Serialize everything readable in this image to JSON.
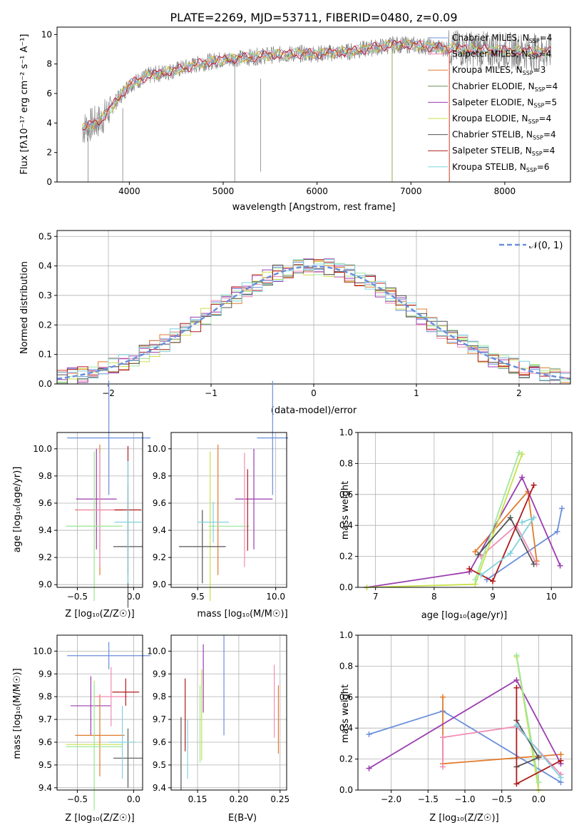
{
  "colors": [
    "#6a8fdb",
    "#e07b2d",
    "#f08cb4",
    "#9b3cb0",
    "#c8e04a",
    "#a0e8a0",
    "#555555",
    "#b01a1a",
    "#7fd3e0"
  ],
  "chart_data": [
    {
      "id": "spectrum",
      "type": "line",
      "title": "PLATE=2269, MJD=53711, FIBERID=0480, z=0.09",
      "xlabel": "wavelength [Angstrom, rest frame]",
      "ylabel": "Flux [fλ10⁻¹⁷ erg cm⁻² s⁻¹ A⁻¹]",
      "xlim": [
        3230,
        8700
      ],
      "ylim": [
        0,
        10.5
      ],
      "xticks": [
        4000,
        5000,
        6000,
        7000,
        8000
      ],
      "yticks": [
        0,
        2,
        4,
        6,
        8,
        10
      ],
      "continuum": [
        [
          3500,
          3.6
        ],
        [
          3700,
          4.2
        ],
        [
          3900,
          5.8
        ],
        [
          4000,
          6.6
        ],
        [
          4200,
          7.2
        ],
        [
          4500,
          7.6
        ],
        [
          4800,
          8.1
        ],
        [
          5000,
          8.3
        ],
        [
          5200,
          8.4
        ],
        [
          5500,
          8.6
        ],
        [
          5800,
          8.7
        ],
        [
          6000,
          8.7
        ],
        [
          6300,
          8.8
        ],
        [
          6600,
          9.1
        ],
        [
          6800,
          9.3
        ],
        [
          7000,
          9.3
        ],
        [
          7300,
          9.1
        ],
        [
          7600,
          9.0
        ],
        [
          8000,
          8.9
        ],
        [
          8500,
          8.8
        ]
      ],
      "legend": [
        {
          "label": "Chabrier MILES, N",
          "sub": "SSP",
          "tail": "=4",
          "color": "#6a8fdb"
        },
        {
          "label": "Salpeter MILES, N",
          "sub": "SSP",
          "tail": "=4",
          "color": "#f08cb4"
        },
        {
          "label": "Kroupa MILES, N",
          "sub": "SSP",
          "tail": "=3",
          "color": "#e07b2d"
        },
        {
          "label": "Chabrier ELODIE, N",
          "sub": "SSP",
          "tail": "=4",
          "color": "#6b8e5a"
        },
        {
          "label": "Salpeter ELODIE, N",
          "sub": "SSP",
          "tail": "=5",
          "color": "#9b3cb0"
        },
        {
          "label": "Kroupa ELODIE, N",
          "sub": "SSP",
          "tail": "=4",
          "color": "#c8e04a"
        },
        {
          "label": "Chabrier STELIB, N",
          "sub": "SSP",
          "tail": "=4",
          "color": "#555555"
        },
        {
          "label": "Salpeter STELIB, N",
          "sub": "SSP",
          "tail": "=4",
          "color": "#b01a1a"
        },
        {
          "label": "Kroupa STELIB, N",
          "sub": "SSP",
          "tail": "=6",
          "color": "#7fd3e0"
        }
      ]
    },
    {
      "id": "residuals",
      "type": "line",
      "xlabel": "(data-model)/error",
      "ylabel": "Normed distribution",
      "xlim": [
        -2.5,
        2.5
      ],
      "ylim": [
        0,
        0.52
      ],
      "xticks": [
        -2,
        -1,
        0,
        1,
        2
      ],
      "yticks": [
        0.0,
        0.1,
        0.2,
        0.3,
        0.4,
        0.5
      ],
      "legend": "𝒩(0, 1)",
      "grid": true
    },
    {
      "id": "age_Z",
      "type": "scatter",
      "xlabel": "Z [log₁₀(Z/Z☉)]",
      "ylabel": "age  [log₁₀(age/yr)]",
      "xlim": [
        -0.68,
        0.08
      ],
      "ylim": [
        8.98,
        10.12
      ],
      "xticks": [
        -0.5,
        0.0
      ],
      "yticks": [
        9.0,
        9.2,
        9.4,
        9.6,
        9.8,
        10.0
      ],
      "points": [
        {
          "x": -0.22,
          "xerr": 0.37,
          "y": 10.08,
          "yerr": 0.42,
          "c": 0
        },
        {
          "x": -0.33,
          "xerr": 0.18,
          "y": 9.63,
          "yerr": 0.37,
          "c": 3
        },
        {
          "x": -0.3,
          "xerr": 0.22,
          "y": 9.55,
          "yerr": 0.48,
          "c": 1
        },
        {
          "x": -0.3,
          "xerr": 0.2,
          "y": 9.55,
          "yerr": 0.42,
          "c": 2
        },
        {
          "x": -0.35,
          "xerr": 0.25,
          "y": 9.43,
          "yerr": 0.55,
          "c": 4
        },
        {
          "x": -0.35,
          "xerr": 0.25,
          "y": 9.43,
          "yerr": 0.55,
          "c": 5
        },
        {
          "x": -0.05,
          "xerr": 0.13,
          "y": 9.28,
          "yerr": 0.45,
          "c": 6
        },
        {
          "x": -0.05,
          "xerr": 0.12,
          "y": 9.55,
          "yerr": 0.47,
          "c": 7
        },
        {
          "x": -0.05,
          "xerr": 0.12,
          "y": 9.46,
          "yerr": 0.45,
          "c": 8
        }
      ]
    },
    {
      "id": "age_mass",
      "type": "scatter",
      "xlabel": "mass [log₁₀(M/M☉)]",
      "xlim": [
        9.33,
        10.07
      ],
      "ylim": [
        8.98,
        10.12
      ],
      "xticks": [
        9.5,
        10.0
      ],
      "yticks": [
        9.0,
        9.2,
        9.4,
        9.6,
        9.8,
        10.0
      ],
      "points": [
        {
          "x": 9.98,
          "xerr": 0.1,
          "y": 10.08,
          "yerr": 0.42,
          "c": 0
        },
        {
          "x": 9.86,
          "xerr": 0.12,
          "y": 9.63,
          "yerr": 0.37,
          "c": 3
        },
        {
          "x": 9.63,
          "xerr": 0.0,
          "y": 9.55,
          "yerr": 0.48,
          "c": 1
        },
        {
          "x": 9.8,
          "xerr": 0.0,
          "y": 9.55,
          "yerr": 0.42,
          "c": 2
        },
        {
          "x": 9.58,
          "xerr": 0.0,
          "y": 9.43,
          "yerr": 0.55,
          "c": 4
        },
        {
          "x": 9.7,
          "xerr": 0.13,
          "y": 9.43,
          "yerr": 0.0,
          "c": 5
        },
        {
          "x": 9.53,
          "xerr": 0.15,
          "y": 9.28,
          "yerr": 0.27,
          "c": 6
        },
        {
          "x": 9.82,
          "xerr": 0.0,
          "y": 9.55,
          "yerr": 0.3,
          "c": 7
        },
        {
          "x": 9.6,
          "xerr": 0.1,
          "y": 9.46,
          "yerr": 0.15,
          "c": 8
        }
      ]
    },
    {
      "id": "weight_age",
      "type": "line",
      "xlabel": "age  [log₁₀(age/yr)]",
      "ylabel": "mass weight",
      "xlim": [
        6.7,
        10.35
      ],
      "ylim": [
        0,
        1.0
      ],
      "xticks": [
        7,
        8,
        9,
        10
      ],
      "yticks": [
        0.0,
        0.2,
        0.4,
        0.6,
        0.8,
        1.0
      ],
      "series": [
        {
          "c": 0,
          "pts": [
            [
              8.9,
              0.05
            ],
            [
              10.1,
              0.36
            ],
            [
              10.18,
              0.51
            ]
          ]
        },
        {
          "c": 1,
          "pts": [
            [
              8.7,
              0.23
            ],
            [
              9.6,
              0.62
            ],
            [
              9.75,
              0.17
            ]
          ]
        },
        {
          "c": 2,
          "pts": [
            [
              8.8,
              0.2
            ],
            [
              9.4,
              0.4
            ],
            [
              9.75,
              0.15
            ]
          ]
        },
        {
          "c": 3,
          "pts": [
            [
              6.85,
              0.0
            ],
            [
              8.6,
              0.1
            ],
            [
              9.5,
              0.71
            ],
            [
              10.15,
              0.14
            ]
          ]
        },
        {
          "c": 4,
          "pts": [
            [
              6.85,
              0.0
            ],
            [
              8.7,
              0.02
            ],
            [
              9.5,
              0.86
            ]
          ]
        },
        {
          "c": 5,
          "pts": [
            [
              8.7,
              0.05
            ],
            [
              9.45,
              0.87
            ]
          ]
        },
        {
          "c": 6,
          "pts": [
            [
              8.75,
              0.21
            ],
            [
              9.3,
              0.45
            ],
            [
              9.7,
              0.15
            ]
          ]
        },
        {
          "c": 7,
          "pts": [
            [
              8.6,
              0.12
            ],
            [
              9.0,
              0.04
            ],
            [
              9.7,
              0.66
            ]
          ]
        },
        {
          "c": 8,
          "pts": [
            [
              8.8,
              0.08
            ],
            [
              9.3,
              0.22
            ],
            [
              9.7,
              0.45
            ],
            [
              9.5,
              0.42
            ]
          ]
        }
      ]
    },
    {
      "id": "mass_Z",
      "type": "scatter",
      "xlabel": "Z [log₁₀(Z/Z☉)]",
      "ylabel": "mass [log₁₀(M/M☉)]",
      "xlim": [
        -0.68,
        0.08
      ],
      "ylim": [
        9.39,
        10.07
      ],
      "xticks": [
        -0.5,
        0.0
      ],
      "yticks": [
        9.4,
        9.5,
        9.6,
        9.7,
        9.8,
        9.9,
        10.0
      ],
      "points": [
        {
          "x": -0.22,
          "xerr": 0.37,
          "y": 9.98,
          "yerr": 0.06,
          "c": 0
        },
        {
          "x": -0.38,
          "xerr": 0.18,
          "y": 9.76,
          "yerr": 0.13,
          "c": 3
        },
        {
          "x": -0.3,
          "xerr": 0.22,
          "y": 9.63,
          "yerr": 0.18,
          "c": 1
        },
        {
          "x": -0.2,
          "xerr": 0.15,
          "y": 9.8,
          "yerr": 0.13,
          "c": 2
        },
        {
          "x": -0.35,
          "xerr": 0.25,
          "y": 9.59,
          "yerr": 0.28,
          "c": 4
        },
        {
          "x": -0.35,
          "xerr": 0.25,
          "y": 9.58,
          "yerr": 0.28,
          "c": 5
        },
        {
          "x": -0.05,
          "xerr": 0.13,
          "y": 9.53,
          "yerr": 0.13,
          "c": 6
        },
        {
          "x": -0.07,
          "xerr": 0.12,
          "y": 9.82,
          "yerr": 0.06,
          "c": 7
        },
        {
          "x": -0.1,
          "xerr": 0.12,
          "y": 9.6,
          "yerr": 0.16,
          "c": 8
        }
      ]
    },
    {
      "id": "mass_EBV",
      "type": "scatter",
      "xlabel": "E(B-V)",
      "xlim": [
        0.118,
        0.258
      ],
      "ylim": [
        9.39,
        10.07
      ],
      "xticks": [
        0.15,
        0.2,
        0.25
      ],
      "yticks": [
        9.4,
        9.5,
        9.6,
        9.7,
        9.8,
        9.9,
        10.0
      ],
      "points": [
        {
          "x": 0.182,
          "xerr": 0,
          "y": 9.85,
          "yerr": 0.22,
          "c": 0
        },
        {
          "x": 0.248,
          "xerr": 0,
          "y": 9.7,
          "yerr": 0.15,
          "c": 1
        },
        {
          "x": 0.243,
          "xerr": 0,
          "y": 9.78,
          "yerr": 0.16,
          "c": 2
        },
        {
          "x": 0.157,
          "xerr": 0,
          "y": 9.88,
          "yerr": 0.15,
          "c": 3
        },
        {
          "x": 0.155,
          "xerr": 0,
          "y": 9.72,
          "yerr": 0.2,
          "c": 4
        },
        {
          "x": 0.153,
          "xerr": 0,
          "y": 9.68,
          "yerr": 0.17,
          "c": 5
        },
        {
          "x": 0.13,
          "xerr": 0,
          "y": 9.55,
          "yerr": 0.16,
          "c": 6
        },
        {
          "x": 0.135,
          "xerr": 0,
          "y": 9.72,
          "yerr": 0.16,
          "c": 7
        },
        {
          "x": 0.138,
          "xerr": 0,
          "y": 9.57,
          "yerr": 0.13,
          "c": 8
        }
      ]
    },
    {
      "id": "weight_Z",
      "type": "line",
      "xlabel": "Z [log₁₀(Z/Z☉)]",
      "ylabel": "mass weight",
      "xlim": [
        -2.45,
        0.45
      ],
      "ylim": [
        0,
        1.0
      ],
      "xticks": [
        -2.0,
        -1.5,
        -1.0,
        -0.5,
        0.0
      ],
      "yticks": [
        0.0,
        0.2,
        0.4,
        0.6,
        0.8,
        1.0
      ],
      "series": [
        {
          "c": 0,
          "pts": [
            [
              -2.3,
              0.36
            ],
            [
              -1.3,
              0.51
            ],
            [
              0.3,
              0.05
            ]
          ]
        },
        {
          "c": 1,
          "pts": [
            [
              -1.3,
              0.6
            ],
            [
              -1.3,
              0.17
            ],
            [
              0.3,
              0.23
            ]
          ]
        },
        {
          "c": 2,
          "pts": [
            [
              -1.3,
              0.15
            ],
            [
              -1.3,
              0.34
            ],
            [
              -0.3,
              0.41
            ],
            [
              0.3,
              0.1
            ]
          ]
        },
        {
          "c": 3,
          "pts": [
            [
              -2.3,
              0.14
            ],
            [
              -0.3,
              0.71
            ],
            [
              0.3,
              0.17
            ]
          ]
        },
        {
          "c": 4,
          "pts": [
            [
              -0.3,
              0.86
            ],
            [
              0.0,
              0.0
            ]
          ]
        },
        {
          "c": 5,
          "pts": [
            [
              -0.3,
              0.87
            ],
            [
              0.0,
              0.05
            ]
          ]
        },
        {
          "c": 6,
          "pts": [
            [
              -0.3,
              0.15
            ],
            [
              0.0,
              0.21
            ],
            [
              -0.3,
              0.45
            ]
          ]
        },
        {
          "c": 7,
          "pts": [
            [
              -0.3,
              0.66
            ],
            [
              -0.3,
              0.04
            ],
            [
              0.3,
              0.19
            ]
          ]
        },
        {
          "c": 8,
          "pts": [
            [
              -0.3,
              0.42
            ],
            [
              0.3,
              0.08
            ]
          ]
        }
      ]
    }
  ]
}
